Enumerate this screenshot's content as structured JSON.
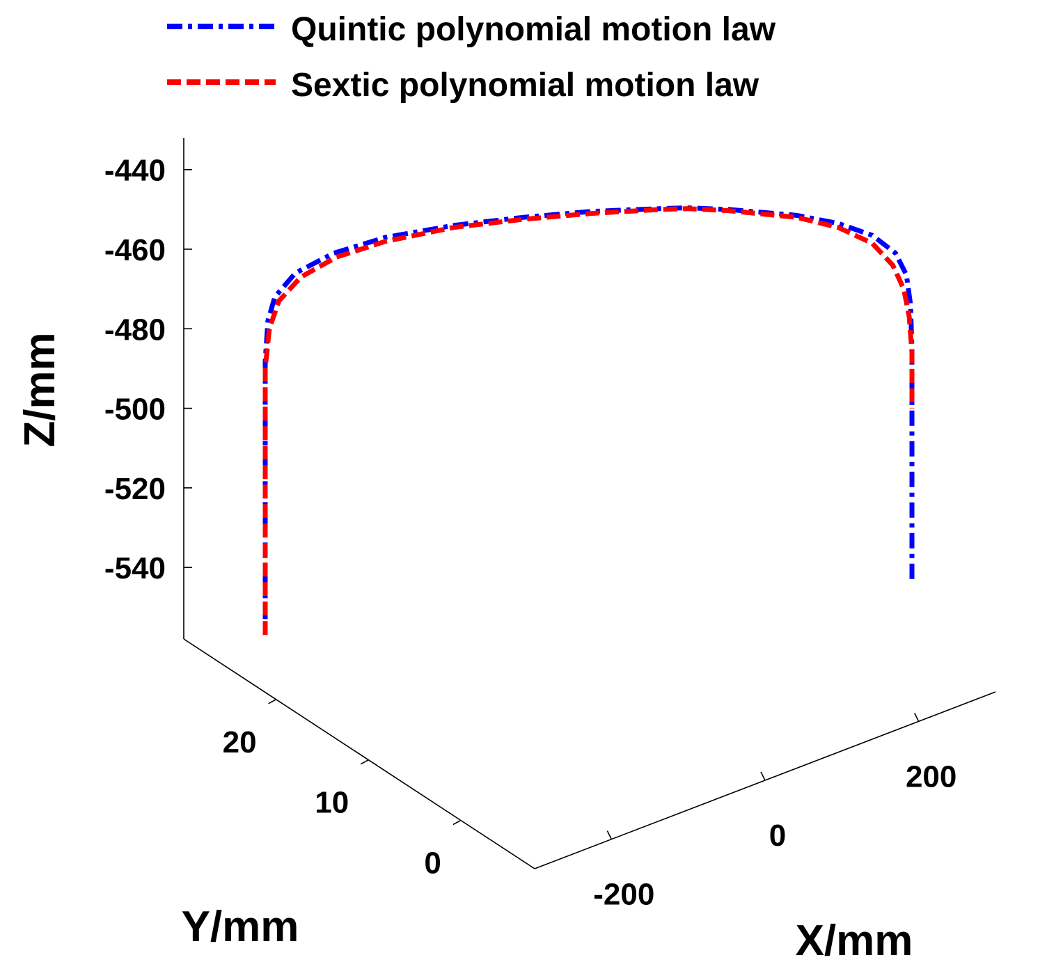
{
  "chart_data": {
    "type": "line",
    "projection": "3d",
    "title": "",
    "xlabel": "X/mm",
    "ylabel": "Y/mm",
    "zlabel": "Z/mm",
    "xlim": [
      -300,
      300
    ],
    "ylim": [
      -8,
      30
    ],
    "zlim": [
      -558,
      -432
    ],
    "x_ticks": [
      -200,
      0,
      200
    ],
    "y_ticks": [
      0,
      10,
      20
    ],
    "z_ticks": [
      -440,
      -460,
      -480,
      -500,
      -520,
      -540
    ],
    "grid": false,
    "legend_position": "top",
    "series": [
      {
        "name": "Quintic polynomial motion law",
        "color": "#0000ff",
        "line_style": "dash-dot",
        "points": [
          {
            "x": -288,
            "y": 0,
            "z": -553
          },
          {
            "x": -288,
            "y": 0,
            "z": -520
          },
          {
            "x": -288,
            "y": 0,
            "z": -488
          },
          {
            "x": -286,
            "y": 0,
            "z": -478
          },
          {
            "x": -281,
            "y": 0,
            "z": -472
          },
          {
            "x": -266,
            "y": 0,
            "z": -466
          },
          {
            "x": -238,
            "y": 0,
            "z": -461
          },
          {
            "x": -200,
            "y": 0,
            "z": -457
          },
          {
            "x": -150,
            "y": 0,
            "z": -454
          },
          {
            "x": -100,
            "y": 0,
            "z": -452
          },
          {
            "x": -50,
            "y": 0,
            "z": -450.5
          },
          {
            "x": 0,
            "y": 0,
            "z": -449.8
          },
          {
            "x": 20,
            "y": 0,
            "z": -449.6
          },
          {
            "x": 50,
            "y": 0,
            "z": -450
          },
          {
            "x": 100,
            "y": 0,
            "z": -451.5
          },
          {
            "x": 130,
            "y": 0,
            "z": -453.5
          },
          {
            "x": 155,
            "y": 0,
            "z": -456.5
          },
          {
            "x": 172,
            "y": 0,
            "z": -461
          },
          {
            "x": 180,
            "y": 0,
            "z": -466.5
          },
          {
            "x": 183,
            "y": 0,
            "z": -474
          },
          {
            "x": 184,
            "y": 0,
            "z": -485
          },
          {
            "x": 184,
            "y": 0,
            "z": -515
          },
          {
            "x": 184,
            "y": 0,
            "z": -543
          }
        ]
      },
      {
        "name": "Sextic polynomial motion law",
        "color": "#ff0000",
        "line_style": "dashed",
        "points": [
          {
            "x": -288,
            "y": 0,
            "z": -557
          },
          {
            "x": -288,
            "y": 0,
            "z": -520
          },
          {
            "x": -288,
            "y": 0,
            "z": -490
          },
          {
            "x": -285,
            "y": 0,
            "z": -480
          },
          {
            "x": -278,
            "y": 0,
            "z": -473
          },
          {
            "x": -262,
            "y": 0,
            "z": -467
          },
          {
            "x": -236,
            "y": 0,
            "z": -462
          },
          {
            "x": -200,
            "y": 0,
            "z": -458
          },
          {
            "x": -150,
            "y": 0,
            "z": -454.5
          },
          {
            "x": -100,
            "y": 0,
            "z": -452.5
          },
          {
            "x": -50,
            "y": 0,
            "z": -451
          },
          {
            "x": 0,
            "y": 0,
            "z": -450
          },
          {
            "x": 20,
            "y": 0,
            "z": -449.8
          },
          {
            "x": 50,
            "y": 0,
            "z": -450.3
          },
          {
            "x": 100,
            "y": 0,
            "z": -452
          },
          {
            "x": 130,
            "y": 0,
            "z": -454.5
          },
          {
            "x": 155,
            "y": 0,
            "z": -458.5
          },
          {
            "x": 170,
            "y": 0,
            "z": -464
          },
          {
            "x": 178,
            "y": 0,
            "z": -470
          },
          {
            "x": 182,
            "y": 0,
            "z": -477
          },
          {
            "x": 184,
            "y": 0,
            "z": -486
          },
          {
            "x": 184,
            "y": 0,
            "z": -500
          }
        ]
      }
    ]
  }
}
